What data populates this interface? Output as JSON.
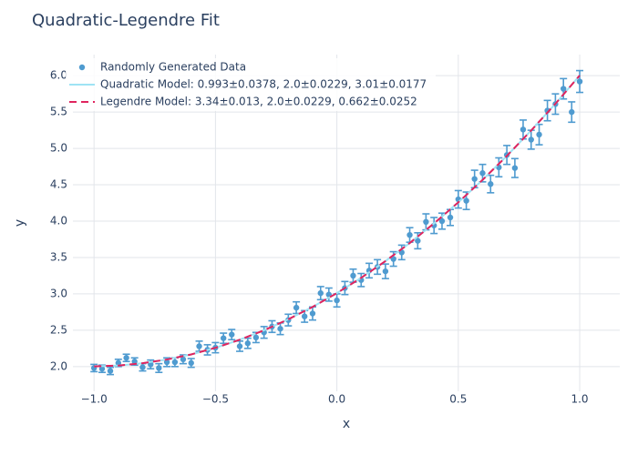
{
  "chart_data": {
    "type": "scatter",
    "title": "Quadratic-Legendre Fit",
    "x_label": "x",
    "y_label": "y",
    "xlim": [
      -1.087,
      1.165
    ],
    "ylim": [
      1.66,
      6.29
    ],
    "xticks": [
      {
        "value": -1,
        "label": "−1.0"
      },
      {
        "value": -0.5,
        "label": "−0.5"
      },
      {
        "value": 0,
        "label": "0.0"
      },
      0.5,
      {
        "value": 1,
        "label": "1.0"
      }
    ],
    "yticks": [
      {
        "value": 2,
        "label": "2.0"
      },
      2.5,
      {
        "value": 3,
        "label": "3.0"
      },
      3.5,
      {
        "value": 4,
        "label": "4.0"
      },
      4.5,
      {
        "value": 5,
        "label": "5.0"
      },
      5.5,
      {
        "value": 6,
        "label": "6.0"
      }
    ],
    "grid": true,
    "series": [
      {
        "name": "Randomly Generated Data",
        "kind": "markers",
        "color": "#4f9bd0",
        "x": [
          -1,
          -0.967,
          -0.933,
          -0.9,
          -0.867,
          -0.833,
          -0.8,
          -0.767,
          -0.733,
          -0.7,
          -0.667,
          -0.633,
          -0.6,
          -0.567,
          -0.533,
          -0.5,
          -0.467,
          -0.433,
          -0.4,
          -0.367,
          -0.333,
          -0.3,
          -0.267,
          -0.233,
          -0.2,
          -0.167,
          -0.133,
          -0.1,
          -0.067,
          -0.033,
          0,
          0.033,
          0.067,
          0.1,
          0.133,
          0.167,
          0.2,
          0.233,
          0.267,
          0.3,
          0.333,
          0.367,
          0.4,
          0.433,
          0.467,
          0.5,
          0.533,
          0.567,
          0.6,
          0.633,
          0.667,
          0.7,
          0.733,
          0.767,
          0.8,
          0.833,
          0.867,
          0.9,
          0.933,
          0.967,
          1
        ],
        "values": [
          1.98,
          1.97,
          1.94,
          2.05,
          2.12,
          2.07,
          1.99,
          2.03,
          1.98,
          2.06,
          2.06,
          2.1,
          2.05,
          2.28,
          2.23,
          2.26,
          2.39,
          2.44,
          2.28,
          2.32,
          2.4,
          2.47,
          2.55,
          2.52,
          2.64,
          2.81,
          2.69,
          2.73,
          3.01,
          2.99,
          2.91,
          3.08,
          3.25,
          3.19,
          3.32,
          3.37,
          3.31,
          3.48,
          3.57,
          3.81,
          3.73,
          3.99,
          3.94,
          4.0,
          4.05,
          4.3,
          4.28,
          4.58,
          4.66,
          4.51,
          4.74,
          4.91,
          4.73,
          5.26,
          5.12,
          5.19,
          5.52,
          5.61,
          5.82,
          5.5,
          5.92
        ],
        "error": [
          0.05,
          0.05,
          0.05,
          0.05,
          0.05,
          0.05,
          0.05,
          0.06,
          0.06,
          0.06,
          0.06,
          0.06,
          0.06,
          0.07,
          0.07,
          0.07,
          0.07,
          0.07,
          0.07,
          0.07,
          0.07,
          0.08,
          0.08,
          0.08,
          0.08,
          0.08,
          0.08,
          0.09,
          0.09,
          0.09,
          0.09,
          0.09,
          0.09,
          0.09,
          0.1,
          0.1,
          0.1,
          0.1,
          0.1,
          0.1,
          0.11,
          0.11,
          0.11,
          0.11,
          0.11,
          0.12,
          0.12,
          0.12,
          0.12,
          0.12,
          0.13,
          0.13,
          0.13,
          0.13,
          0.13,
          0.14,
          0.14,
          0.14,
          0.14,
          0.14,
          0.15
        ]
      },
      {
        "name": "Quadratic Model: 0.993±0.0378, 2.0±0.0229, 3.01±0.0177",
        "kind": "line",
        "color": "#9fe3f4",
        "x": [
          -1,
          -0.9,
          -0.8,
          -0.7,
          -0.6,
          -0.5,
          -0.4,
          -0.3,
          -0.2,
          -0.1,
          0,
          0.1,
          0.2,
          0.3,
          0.4,
          0.5,
          0.6,
          0.7,
          0.8,
          0.9,
          1
        ],
        "values": [
          2.003,
          2.014,
          2.046,
          2.097,
          2.167,
          2.258,
          2.369,
          2.499,
          2.65,
          2.82,
          3.01,
          3.22,
          3.45,
          3.699,
          3.969,
          4.258,
          4.567,
          4.897,
          5.246,
          5.614,
          6.003
        ]
      },
      {
        "name": "Legendre Model: 3.34±0.013, 2.0±0.0229, 0.662±0.0252",
        "kind": "dash",
        "color": "#e0245e",
        "x": [
          -1,
          -0.9,
          -0.8,
          -0.7,
          -0.6,
          -0.5,
          -0.4,
          -0.3,
          -0.2,
          -0.1,
          0,
          0.1,
          0.2,
          0.3,
          0.4,
          0.5,
          0.6,
          0.7,
          0.8,
          0.9,
          1
        ],
        "values": [
          2.003,
          2.014,
          2.046,
          2.097,
          2.167,
          2.258,
          2.369,
          2.499,
          2.65,
          2.82,
          3.01,
          3.22,
          3.45,
          3.699,
          3.969,
          4.258,
          4.567,
          4.897,
          5.246,
          5.614,
          6.003
        ]
      }
    ]
  }
}
